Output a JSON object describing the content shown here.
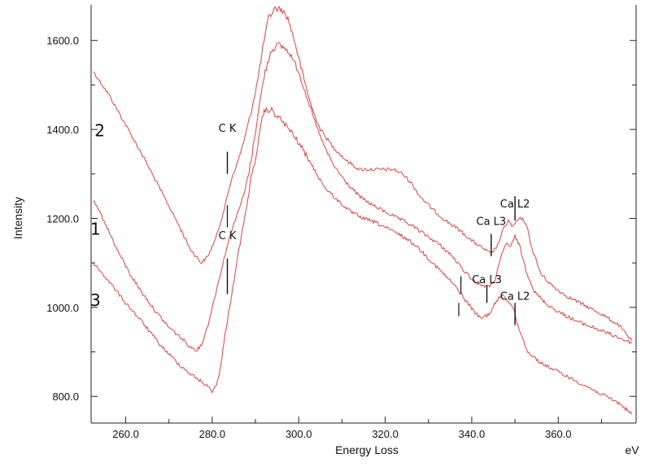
{
  "chart_data": {
    "type": "line",
    "xlabel": "Energy Loss",
    "x_unit": "eV",
    "ylabel": "Intensity",
    "xlim": [
      252,
      378
    ],
    "ylim": [
      740,
      1680
    ],
    "x_ticks": [
      260,
      280,
      300,
      320,
      340,
      360
    ],
    "x_tick_labels": [
      "260.0",
      "280.0",
      "300.0",
      "320.0",
      "340.0",
      "360.0"
    ],
    "y_ticks": [
      800,
      1000,
      1200,
      1400,
      1600
    ],
    "y_tick_labels": [
      "800.0",
      "1000.0",
      "1200.0",
      "1400.0",
      "1600.0"
    ],
    "grid": false,
    "line_color": "#e0524e",
    "series": [
      {
        "name": "2",
        "points": [
          [
            252.5,
            1530
          ],
          [
            256,
            1480
          ],
          [
            260,
            1410
          ],
          [
            264,
            1340
          ],
          [
            268,
            1265
          ],
          [
            272,
            1190
          ],
          [
            275,
            1130
          ],
          [
            277.5,
            1100
          ],
          [
            279,
            1115
          ],
          [
            281,
            1160
          ],
          [
            283,
            1230
          ],
          [
            284.5,
            1290
          ],
          [
            286,
            1330
          ],
          [
            287.5,
            1380
          ],
          [
            289,
            1440
          ],
          [
            290.5,
            1510
          ],
          [
            292,
            1600
          ],
          [
            293,
            1650
          ],
          [
            294.5,
            1672
          ],
          [
            296,
            1670
          ],
          [
            297.5,
            1650
          ],
          [
            299,
            1600
          ],
          [
            301,
            1520
          ],
          [
            303,
            1450
          ],
          [
            305,
            1400
          ],
          [
            308,
            1360
          ],
          [
            311,
            1330
          ],
          [
            314,
            1310
          ],
          [
            318,
            1310
          ],
          [
            322,
            1310
          ],
          [
            324,
            1300
          ],
          [
            326,
            1280
          ],
          [
            328,
            1250
          ],
          [
            331,
            1220
          ],
          [
            334,
            1195
          ],
          [
            337,
            1175
          ],
          [
            340,
            1150
          ],
          [
            343,
            1130
          ],
          [
            344.5,
            1120
          ],
          [
            346,
            1140
          ],
          [
            347.5,
            1180
          ],
          [
            348.5,
            1195
          ],
          [
            349.5,
            1180
          ],
          [
            350.5,
            1195
          ],
          [
            351.5,
            1200
          ],
          [
            352.5,
            1190
          ],
          [
            354,
            1130
          ],
          [
            356,
            1075
          ],
          [
            359,
            1045
          ],
          [
            362,
            1025
          ],
          [
            366,
            1005
          ],
          [
            370,
            985
          ],
          [
            374,
            960
          ],
          [
            377,
            925
          ]
        ]
      },
      {
        "name": "1",
        "points": [
          [
            252.5,
            1240
          ],
          [
            255,
            1195
          ],
          [
            258,
            1130
          ],
          [
            261,
            1075
          ],
          [
            264,
            1030
          ],
          [
            267,
            990
          ],
          [
            270,
            955
          ],
          [
            273,
            930
          ],
          [
            275,
            910
          ],
          [
            276.5,
            905
          ],
          [
            277.5,
            915
          ],
          [
            279,
            960
          ],
          [
            281,
            1040
          ],
          [
            283,
            1120
          ],
          [
            284.5,
            1175
          ],
          [
            286,
            1215
          ],
          [
            287.5,
            1260
          ],
          [
            289,
            1330
          ],
          [
            290.5,
            1430
          ],
          [
            292,
            1520
          ],
          [
            293.5,
            1575
          ],
          [
            295,
            1590
          ],
          [
            296.5,
            1585
          ],
          [
            298,
            1570
          ],
          [
            300,
            1530
          ],
          [
            302,
            1470
          ],
          [
            304,
            1410
          ],
          [
            306,
            1360
          ],
          [
            308,
            1320
          ],
          [
            311,
            1280
          ],
          [
            314,
            1250
          ],
          [
            317,
            1230
          ],
          [
            320,
            1215
          ],
          [
            323,
            1200
          ],
          [
            326,
            1185
          ],
          [
            329,
            1165
          ],
          [
            332,
            1145
          ],
          [
            335,
            1120
          ],
          [
            338,
            1085
          ],
          [
            341,
            1055
          ],
          [
            344,
            1045
          ],
          [
            345.5,
            1065
          ],
          [
            347,
            1120
          ],
          [
            348,
            1145
          ],
          [
            349,
            1135
          ],
          [
            350,
            1160
          ],
          [
            351,
            1140
          ],
          [
            352.5,
            1085
          ],
          [
            354.5,
            1035
          ],
          [
            357,
            1010
          ],
          [
            360,
            990
          ],
          [
            364,
            970
          ],
          [
            368,
            955
          ],
          [
            372,
            940
          ],
          [
            377,
            920
          ]
        ]
      },
      {
        "name": "3",
        "points": [
          [
            252.5,
            1100
          ],
          [
            256,
            1060
          ],
          [
            260,
            1010
          ],
          [
            264,
            965
          ],
          [
            268,
            915
          ],
          [
            272,
            875
          ],
          [
            275,
            850
          ],
          [
            278,
            830
          ],
          [
            280,
            812
          ],
          [
            281,
            825
          ],
          [
            282,
            870
          ],
          [
            283,
            940
          ],
          [
            284,
            1000
          ],
          [
            285,
            1060
          ],
          [
            286,
            1120
          ],
          [
            287.5,
            1200
          ],
          [
            289,
            1290
          ],
          [
            290.5,
            1360
          ],
          [
            291.5,
            1420
          ],
          [
            292,
            1440
          ],
          [
            293.5,
            1445
          ],
          [
            295,
            1430
          ],
          [
            297,
            1410
          ],
          [
            300,
            1370
          ],
          [
            303,
            1320
          ],
          [
            306,
            1270
          ],
          [
            309,
            1240
          ],
          [
            312,
            1215
          ],
          [
            315,
            1200
          ],
          [
            318,
            1190
          ],
          [
            321,
            1175
          ],
          [
            324,
            1160
          ],
          [
            327,
            1140
          ],
          [
            330,
            1110
          ],
          [
            333,
            1080
          ],
          [
            336,
            1050
          ],
          [
            339,
            1010
          ],
          [
            342,
            975
          ],
          [
            344,
            985
          ],
          [
            345.5,
            1010
          ],
          [
            347,
            1030
          ],
          [
            348,
            1020
          ],
          [
            349.5,
            1000
          ],
          [
            351,
            950
          ],
          [
            353,
            900
          ],
          [
            356,
            875
          ],
          [
            359,
            860
          ],
          [
            363,
            840
          ],
          [
            367,
            820
          ],
          [
            371,
            800
          ],
          [
            374,
            785
          ],
          [
            377,
            760
          ]
        ]
      }
    ],
    "series_labels": [
      {
        "text": "2",
        "x": 254,
        "y": 1385
      },
      {
        "text": "1",
        "x": 253,
        "y": 1163
      },
      {
        "text": "3",
        "x": 253,
        "y": 1003
      }
    ],
    "annotations": [
      {
        "text": "C K",
        "x": 283.5,
        "y_label": 1395,
        "y_start": 1300,
        "y_end": 1350
      },
      {
        "text": "C K",
        "x": 283.5,
        "y_label": 1153,
        "y_start": 1030,
        "y_end": 1110
      },
      {
        "text": "Ca L3",
        "x": 344.5,
        "y_label": 1185,
        "y_start": 1115,
        "y_end": 1165
      },
      {
        "text": "Ca L2",
        "x": 350,
        "y_label": 1225,
        "y_start": 1195,
        "y_end": 1250
      },
      {
        "text": "Ca L3",
        "x": 343.5,
        "y_label": 1055,
        "y_start": 1010,
        "y_end": 1050
      },
      {
        "text": "Ca L2",
        "x": 350,
        "y_label": 1017,
        "y_start": 960,
        "y_end": 1010
      }
    ],
    "extra_markers": [
      {
        "x": 283.5,
        "y_start": 1180,
        "y_end": 1230
      },
      {
        "x": 337.5,
        "y_start": 1030,
        "y_end": 1070
      },
      {
        "x": 337,
        "y_start": 980,
        "y_end": 1010
      }
    ]
  }
}
